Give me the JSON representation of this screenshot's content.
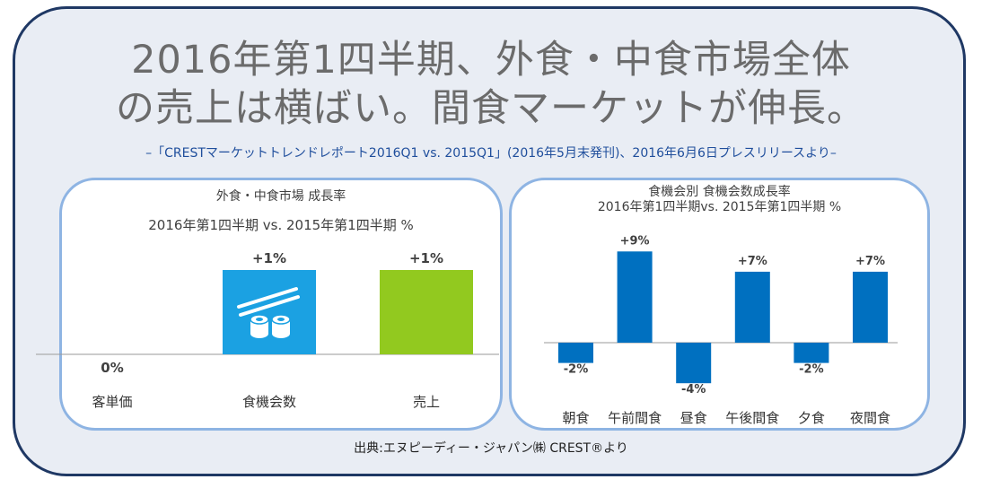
{
  "header": {
    "title_line1": "2016年第1四半期、外食・中食市場全体",
    "title_line2": "の売上は横ばい。間食マーケットが伸長。",
    "subtitle": "–「CRESTマーケットトレンドレポート2016Q1 vs. 2015Q1」(2016年5月末発刊)、2016年6月6日プレスリリースより–"
  },
  "footer": {
    "source": "出典:エヌピーディー・ジャパン㈱ CREST®より"
  },
  "colors": {
    "frame_border": "#1f3864",
    "frame_bg": "#e9edf4",
    "panel_border": "#8eb4e3",
    "bar_blue": "#0070c0",
    "bar_cyan": "#1ba1e2",
    "bar_green": "#92c91f"
  },
  "chart_data": [
    {
      "type": "bar",
      "title": "外食・中食市場 成長率",
      "subtitle": "2016年第1四半期 vs. 2015年第1四半期 %",
      "categories": [
        "客単価",
        "食機会数",
        "売上"
      ],
      "values": [
        0,
        1,
        1
      ],
      "value_labels": [
        "0%",
        "+1%",
        "+1%"
      ],
      "colors": [
        "#1ba1e2",
        "#1ba1e2",
        "#92c91f"
      ],
      "icon": "sushi-chopsticks-icon"
    },
    {
      "type": "bar",
      "title": "食機会別 食機会数成長率",
      "subtitle": "2016年第1四半期vs. 2015年第1四半期 %",
      "categories": [
        "朝食",
        "午前間食",
        "昼食",
        "午後間食",
        "夕食",
        "夜間食"
      ],
      "values": [
        -2,
        9,
        -4,
        7,
        -2,
        7
      ],
      "value_labels": [
        "-2%",
        "+9%",
        "-4%",
        "+7%",
        "-2%",
        "+7%"
      ],
      "color": "#0070c0"
    }
  ]
}
